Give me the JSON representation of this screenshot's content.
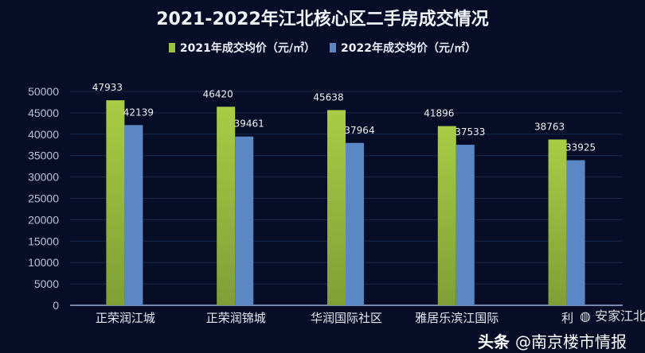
{
  "chart_data": {
    "type": "bar",
    "title": "2021-2022年江北核心区二手房成交情况",
    "categories": [
      "正荣润江城",
      "正荣润锦城",
      "华润国际社区",
      "雅居乐滨江国际",
      "利"
    ],
    "series": [
      {
        "name": "2021年成交均价（元/㎡）",
        "color": "#9bc23f",
        "values": [
          47933,
          46420,
          45638,
          41896,
          38763
        ]
      },
      {
        "name": "2022年成交均价（元/㎡）",
        "color": "#5b87c5",
        "values": [
          42139,
          39461,
          37964,
          37533,
          33925
        ]
      }
    ],
    "xlabel": "",
    "ylabel": "",
    "ylim": [
      0,
      50000
    ],
    "yticks": [
      0,
      5000,
      10000,
      15000,
      20000,
      25000,
      30000,
      35000,
      40000,
      45000,
      50000
    ],
    "grid": true,
    "legend_position": "top"
  },
  "watermarks": {
    "wechat": "安家江北",
    "toutiao_prefix": "头条",
    "toutiao_account": "@南京楼市情报"
  }
}
